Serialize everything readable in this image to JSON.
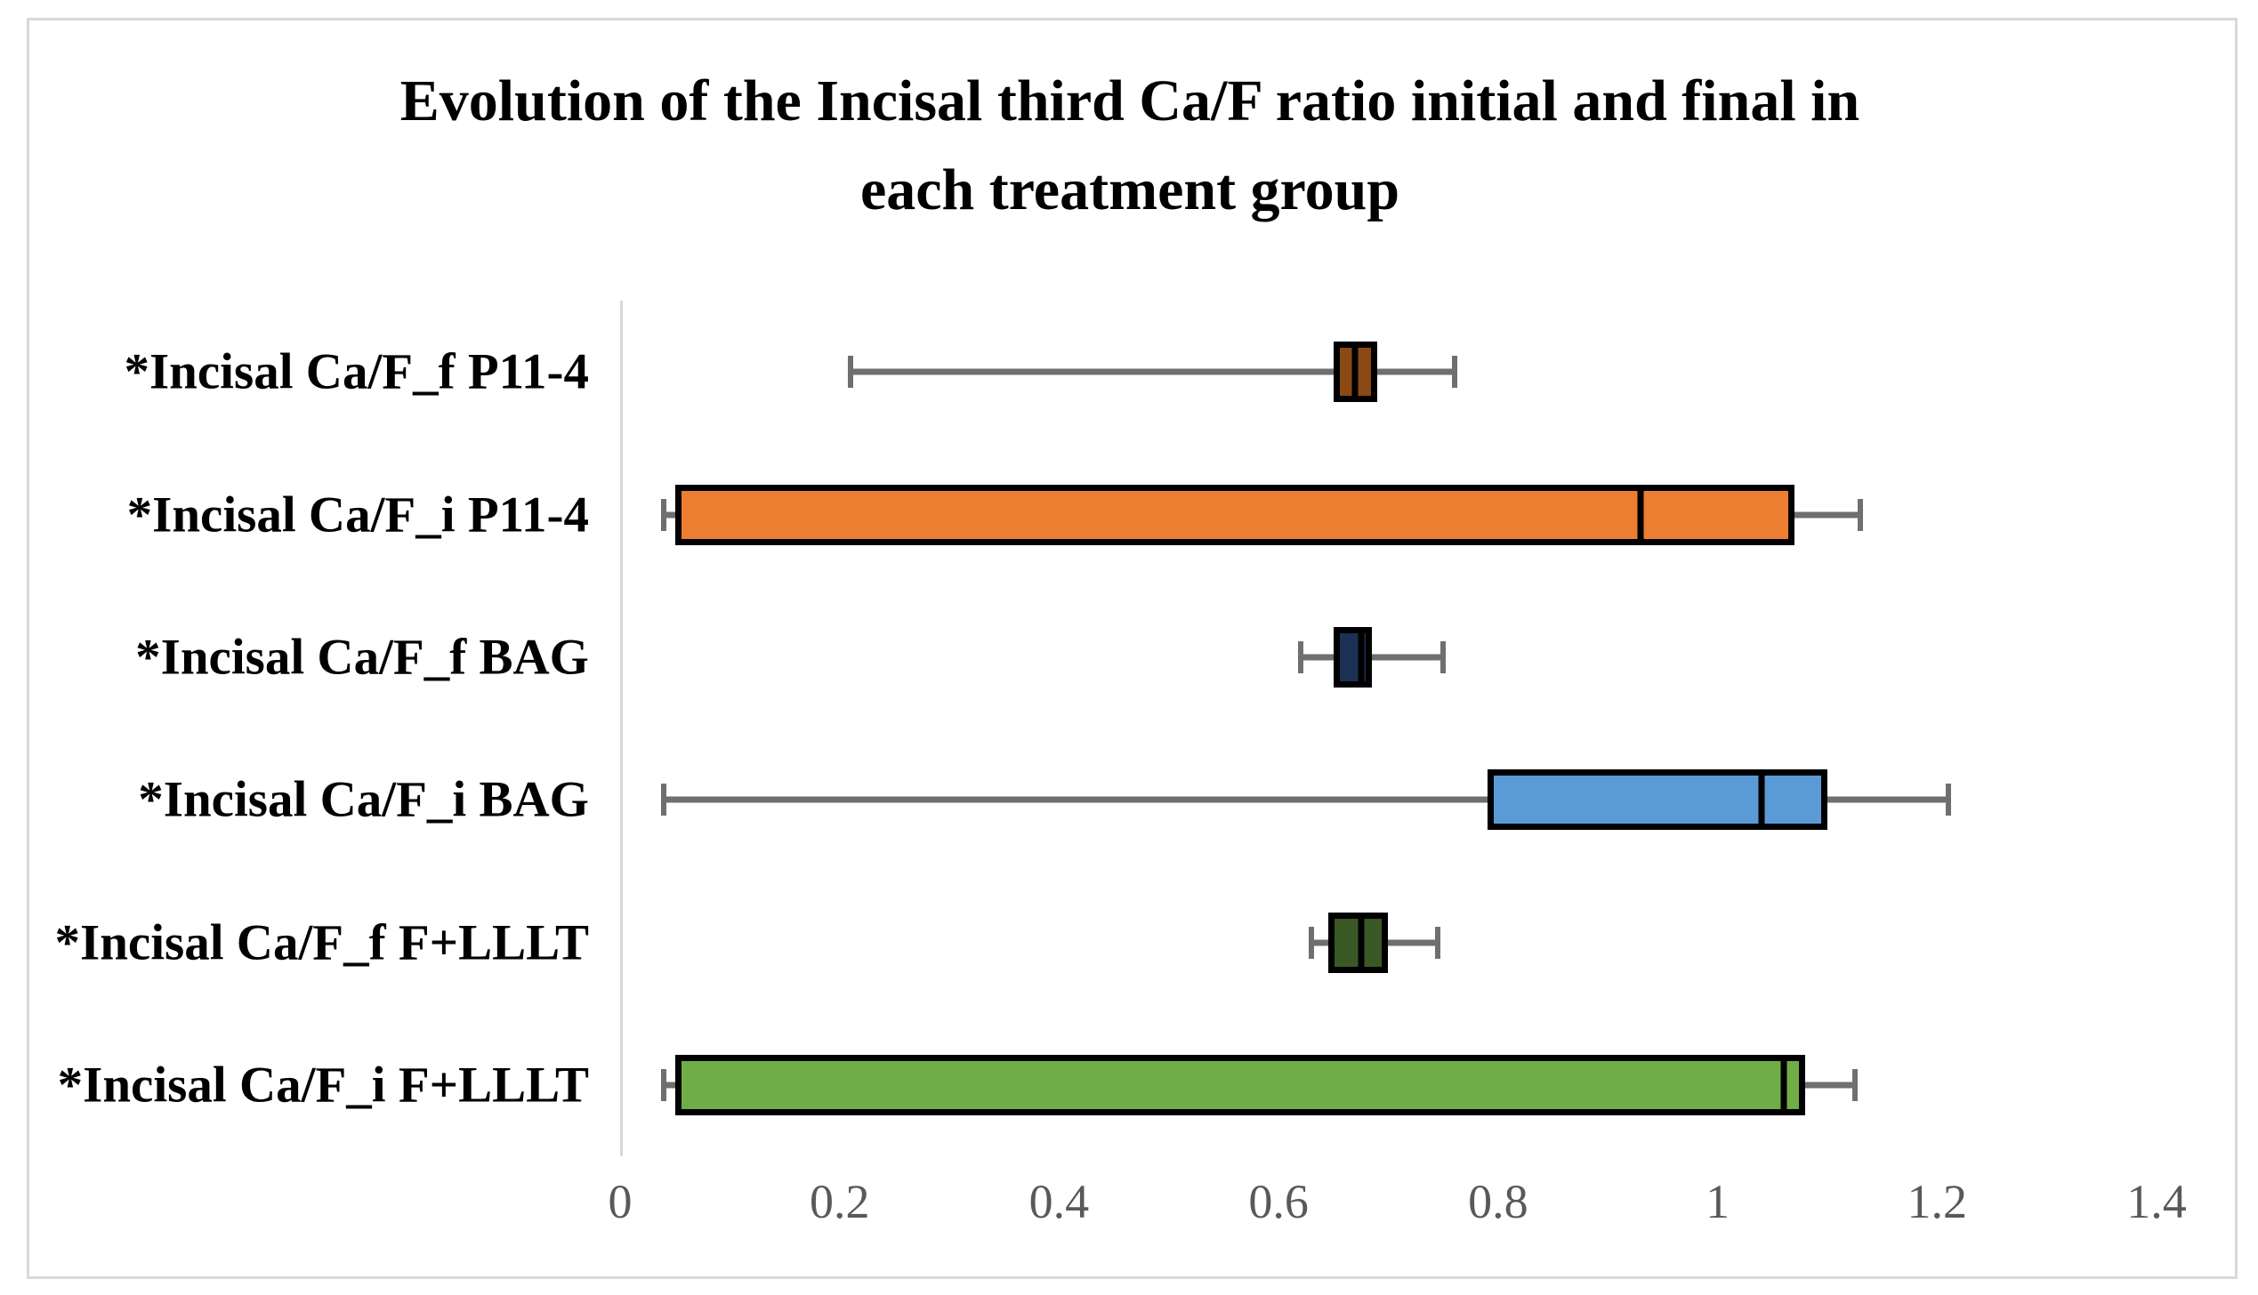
{
  "chart_data": {
    "type": "boxplot",
    "orientation": "horizontal",
    "title": "Evolution of the Incisal third Ca/F ratio initial and final in each treatment group",
    "title_lines": [
      "Evolution of the Incisal third Ca/F ratio initial and final in",
      "each treatment group"
    ],
    "x_axis": {
      "min": 0,
      "max": 1.4,
      "tick_values": [
        0,
        0.2,
        0.4,
        0.6,
        0.8,
        1,
        1.2,
        1.4
      ],
      "tick_labels": [
        "0",
        "0.2",
        "0.4",
        "0.6",
        "0.8",
        "1",
        "1.2",
        "1.4"
      ]
    },
    "grid": "off",
    "legend": "none",
    "series": [
      {
        "label": "*Incisal Ca/F_f P11-4",
        "color": "#8B4A15",
        "whisker_min": 0.21,
        "q1": 0.65,
        "median": 0.67,
        "q3": 0.69,
        "whisker_max": 0.76
      },
      {
        "label": "*Incisal Ca/F_i P11-4",
        "color": "#ED7D31",
        "whisker_min": 0.04,
        "q1": 0.05,
        "median": 0.93,
        "q3": 1.07,
        "whisker_max": 1.13
      },
      {
        "label": "*Incisal Ca/F_f BAG",
        "color": "#1C3055",
        "whisker_min": 0.62,
        "q1": 0.65,
        "median": 0.675,
        "q3": 0.685,
        "whisker_max": 0.75
      },
      {
        "label": "*Incisal Ca/F_i BAG",
        "color": "#5B9BD5",
        "whisker_min": 0.04,
        "q1": 0.79,
        "median": 1.04,
        "q3": 1.1,
        "whisker_max": 1.21
      },
      {
        "label": "*Incisal Ca/F_f F+LLLT",
        "color": "#3A5826",
        "whisker_min": 0.63,
        "q1": 0.645,
        "median": 0.675,
        "q3": 0.7,
        "whisker_max": 0.745
      },
      {
        "label": "*Incisal Ca/F_i F+LLLT",
        "color": "#70AD47",
        "whisker_min": 0.04,
        "q1": 0.05,
        "median": 1.06,
        "q3": 1.08,
        "whisker_max": 1.125
      }
    ],
    "colors": {
      "frame_border": "#D9D9D9",
      "axis_line": "#D9D9D9",
      "whisker": "#6F6F6F",
      "box_border": "#000000",
      "tick_label": "#595959",
      "title_text": "#000000"
    }
  }
}
